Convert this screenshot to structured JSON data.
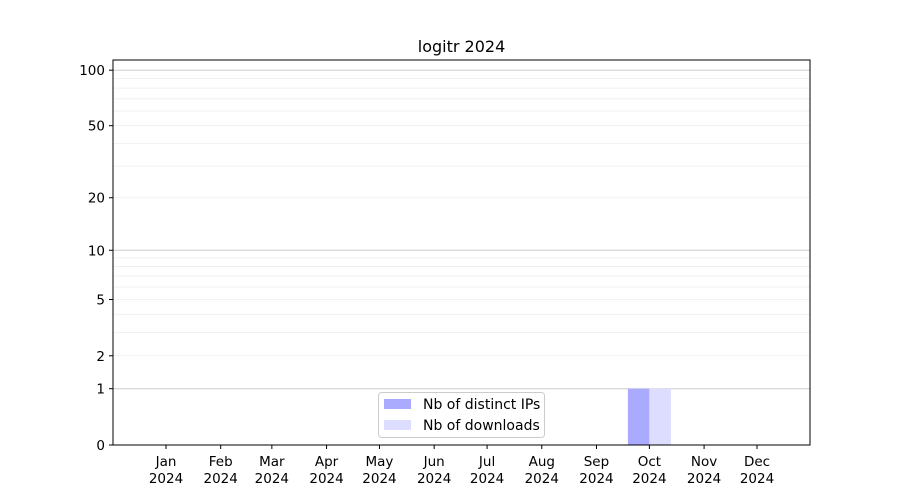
{
  "chart_data": {
    "type": "bar",
    "title": "logitr 2024",
    "xlabel": "",
    "ylabel": "",
    "y_scale": "symlog (log of 1+y)",
    "ylim": [
      0,
      113
    ],
    "y_ticks": [
      0,
      1,
      2,
      5,
      10,
      20,
      50,
      100
    ],
    "y_major_grid": [
      1,
      10,
      100
    ],
    "y_minor_grid": [
      3,
      4,
      6,
      7,
      8,
      9,
      30,
      40,
      60,
      70,
      80,
      90
    ],
    "grid": true,
    "x_ticks": [
      {
        "date": "2024-01-01",
        "label": [
          "Jan",
          "2024"
        ]
      },
      {
        "date": "2024-02-01",
        "label": [
          "Feb",
          "2024"
        ]
      },
      {
        "date": "2024-03-01",
        "label": [
          "Mar",
          "2024"
        ]
      },
      {
        "date": "2024-04-01",
        "label": [
          "Apr",
          "2024"
        ]
      },
      {
        "date": "2024-05-01",
        "label": [
          "May",
          "2024"
        ]
      },
      {
        "date": "2024-06-01",
        "label": [
          "Jun",
          "2024"
        ]
      },
      {
        "date": "2024-07-01",
        "label": [
          "Jul",
          "2024"
        ]
      },
      {
        "date": "2024-08-01",
        "label": [
          "Aug",
          "2024"
        ]
      },
      {
        "date": "2024-09-01",
        "label": [
          "Sep",
          "2024"
        ]
      },
      {
        "date": "2024-10-01",
        "label": [
          "Oct",
          "2024"
        ]
      },
      {
        "date": "2024-11-01",
        "label": [
          "Nov",
          "2024"
        ]
      },
      {
        "date": "2024-12-01",
        "label": [
          "Dec",
          "2024"
        ]
      }
    ],
    "categories": [
      "2024-10"
    ],
    "series": [
      {
        "name": "Nb of distinct IPs",
        "color": "#aaaaff",
        "values": [
          1
        ]
      },
      {
        "name": "Nb of downloads",
        "color": "#ddddff",
        "values": [
          1
        ]
      }
    ],
    "legend_position": "bottom-center"
  }
}
